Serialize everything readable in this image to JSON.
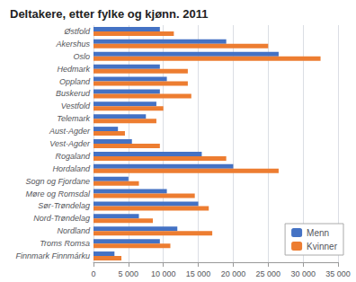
{
  "chart_data": {
    "type": "bar",
    "orientation": "horizontal",
    "title": "Deltakere, etter fylke og kjønn. 2011",
    "categories": [
      "Østfold",
      "Akershus",
      "Oslo",
      "Hedmark",
      "Oppland",
      "Buskerud",
      "Vestfold",
      "Telemark",
      "Aust-Agder",
      "Vest-Agder",
      "Rogaland",
      "Hordaland",
      "Sogn og Fjordane",
      "Møre og Romsdal",
      "Sør-Trøndelag",
      "Nord-Trøndelag",
      "Nordland",
      "Troms Romsa",
      "Finnmark Finnmárku"
    ],
    "series": [
      {
        "name": "Menn",
        "color": "#4472C4",
        "values": [
          9500,
          19000,
          26500,
          9500,
          10500,
          9500,
          9000,
          7500,
          3500,
          5500,
          15500,
          20000,
          5000,
          10500,
          15000,
          6500,
          12000,
          9500,
          3000
        ]
      },
      {
        "name": "Kvinner",
        "color": "#ED7D31",
        "values": [
          11500,
          25000,
          32500,
          13500,
          13500,
          14000,
          10000,
          9000,
          4500,
          9500,
          19000,
          26500,
          6500,
          14500,
          16500,
          8500,
          17000,
          11000,
          4000
        ]
      }
    ],
    "xlim": [
      0,
      35000
    ],
    "xticks": [
      0,
      {
        "value": 5000,
        "label": "5 000"
      },
      {
        "value": 10000,
        "label": "10 000"
      },
      {
        "value": 15000,
        "label": "15 000"
      },
      {
        "value": 20000,
        "label": "20 000"
      },
      {
        "value": 25000,
        "label": "25 000"
      },
      {
        "value": 30000,
        "label": "30 000"
      },
      {
        "value": 35000,
        "label": "35 000"
      }
    ],
    "grid": true,
    "legend": "lower right"
  }
}
